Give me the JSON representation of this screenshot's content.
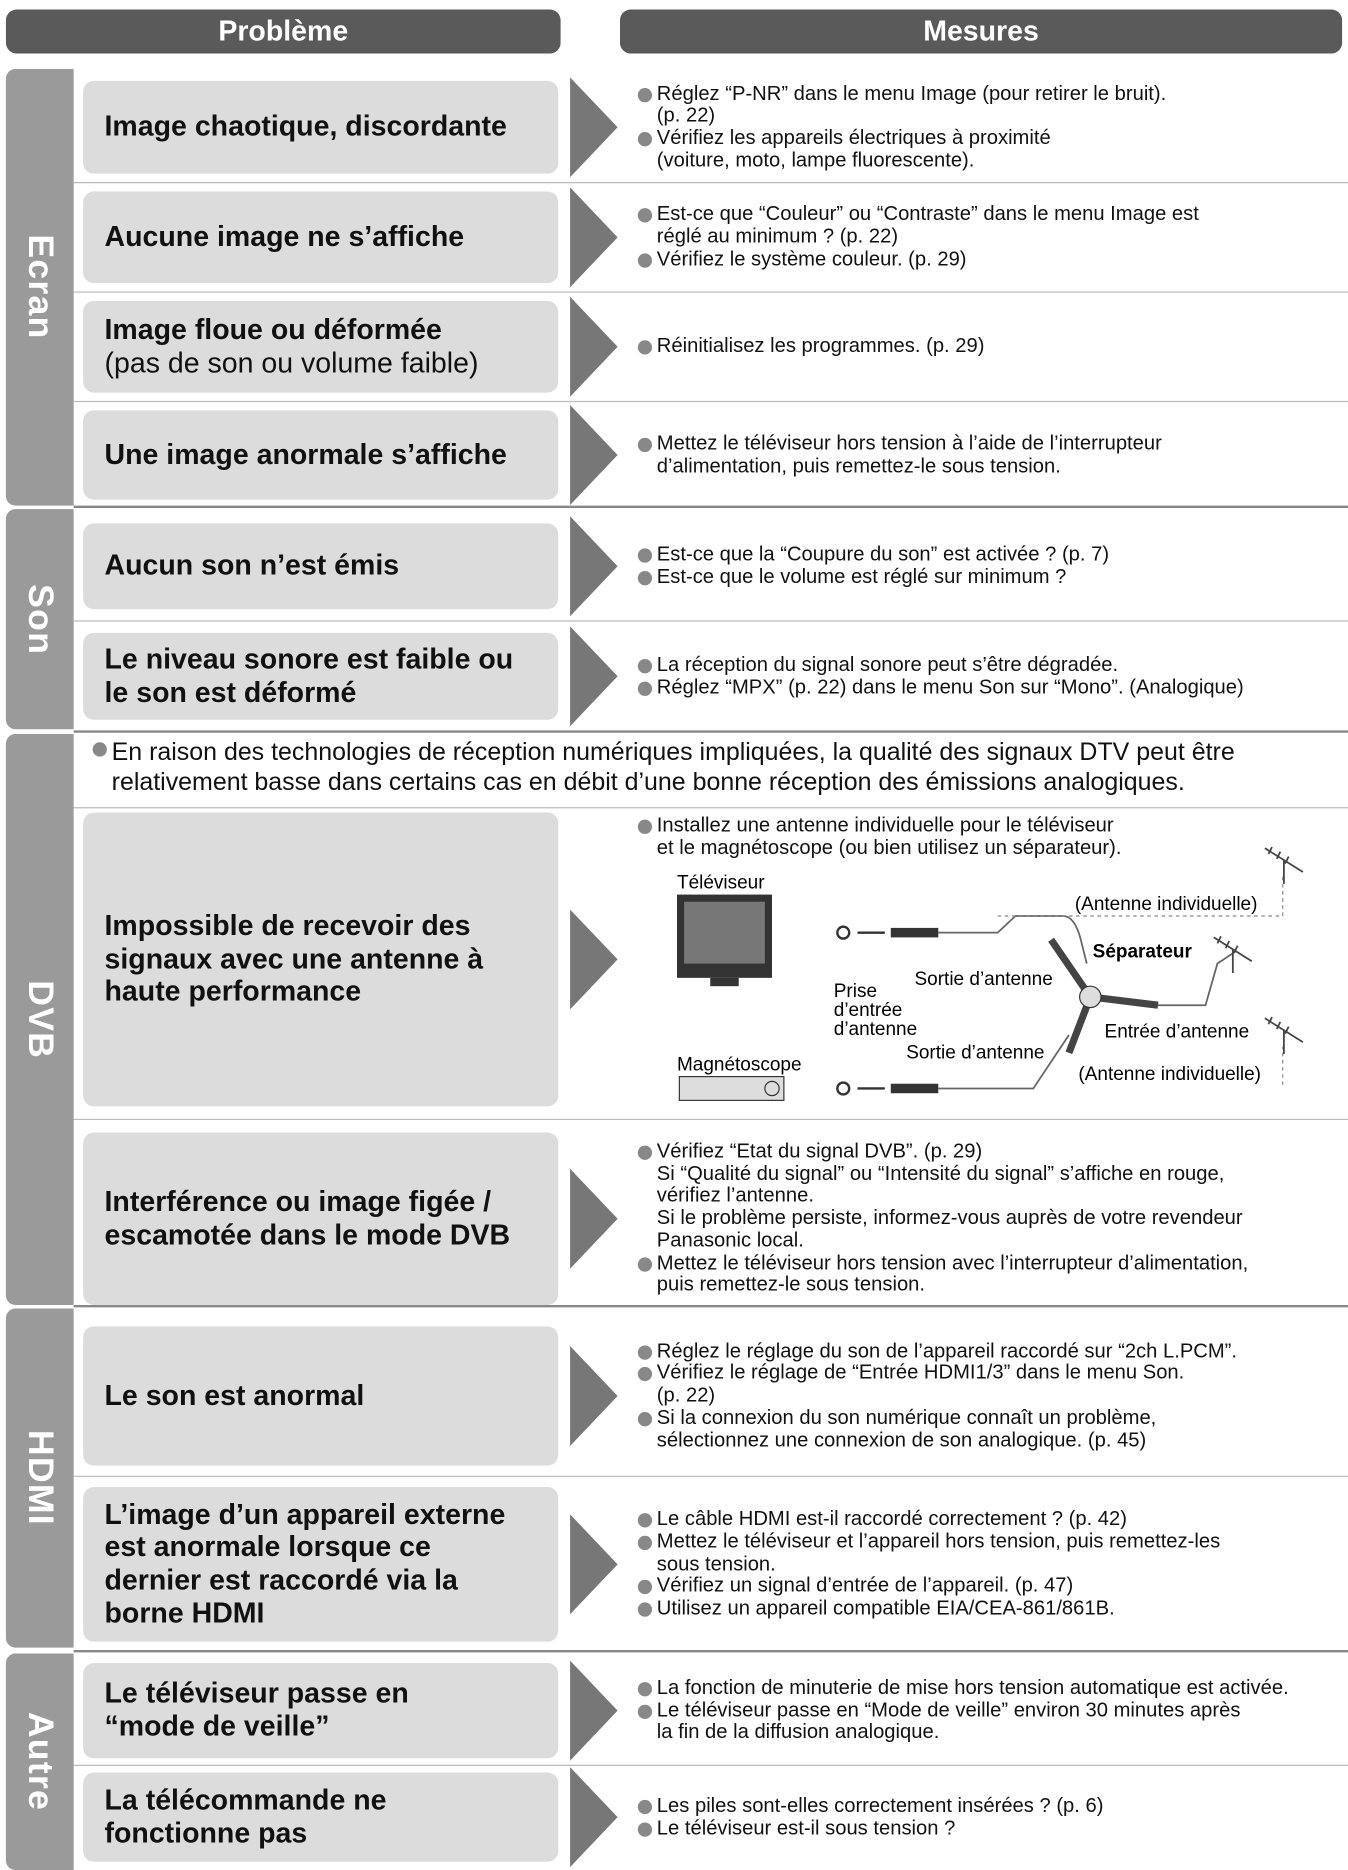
{
  "header": {
    "problem": "Problème",
    "measures": "Mesures"
  },
  "sections": [
    {
      "label": "Ecran",
      "rows": [
        {
          "problem": [
            "Image chaotique, discordante"
          ],
          "measures": [
            [
              "Réglez “P-NR” dans le menu Image (pour retirer le bruit).",
              "(p. 22)"
            ],
            [
              "Vérifiez les appareils électriques à proximité",
              "(voiture, moto, lampe fluorescente)."
            ]
          ]
        },
        {
          "problem": [
            "Aucune image ne s’affiche"
          ],
          "measures": [
            [
              "Est-ce que “Couleur” ou “Contraste” dans le menu Image est",
              "réglé au minimum ? (p. 22)"
            ],
            [
              "Vérifiez le système couleur. (p. 29)"
            ]
          ]
        },
        {
          "problem": [
            "Image floue ou déformée"
          ],
          "problem_note": "(pas de son ou volume faible)",
          "measures": [
            [
              "Réinitialisez les programmes. (p. 29)"
            ]
          ]
        },
        {
          "problem": [
            "Une image anormale s’affiche"
          ],
          "measures": [
            [
              "Mettez le téléviseur hors tension à l’aide de l’interrupteur",
              "d’alimentation, puis remettez-le sous tension."
            ]
          ]
        }
      ]
    },
    {
      "label": "Son",
      "rows": [
        {
          "problem": [
            "Aucun son n’est émis"
          ],
          "measures": [
            [
              "Est-ce que la “Coupure du son” est activée ? (p. 7)"
            ],
            [
              "Est-ce que le volume est réglé sur minimum ?"
            ]
          ]
        },
        {
          "problem": [
            "Le niveau sonore est faible ou",
            "le son est déformé"
          ],
          "measures": [
            [
              "La réception du signal sonore peut s’être dégradée."
            ],
            [
              "Réglez “MPX” (p. 22) dans le menu Son sur “Mono”. (Analogique)"
            ]
          ]
        }
      ]
    },
    {
      "label": "DVB",
      "note": [
        "En raison des technologies de réception numériques impliquées, la qualité des signaux DTV peut être",
        "relativement basse dans certains cas en débit d’une bonne réception des émissions analogiques."
      ],
      "rows": [
        {
          "problem": [
            "Impossible de recevoir des",
            "signaux avec une antenne à",
            "haute performance"
          ],
          "measures": [
            [
              "Installez une antenne individuelle pour le téléviseur",
              "et le magnétoscope (ou bien utilisez un séparateur)."
            ]
          ],
          "diagram": {
            "tv": "Téléviseur",
            "antenna_top": "(Antenne individuelle)",
            "splitter": "Séparateur",
            "out_top": "Sortie d’antenne",
            "input": [
              "Prise",
              "d’entrée",
              "d’antenne"
            ],
            "in_right": "Entrée d’antenne",
            "out_bottom": "Sortie d’antenne",
            "vcr": "Magnétoscope",
            "antenna_bottom": "(Antenne individuelle)"
          }
        },
        {
          "problem": [
            "Interférence ou image figée /",
            "escamotée dans le mode DVB"
          ],
          "measures": [
            [
              "Vérifiez “Etat du signal DVB”. (p. 29)",
              "Si “Qualité du signal” ou “Intensité du signal” s’affiche en rouge,",
              "vérifiez l’antenne.",
              "Si le problème persiste, informez-vous auprès de votre revendeur",
              "Panasonic local."
            ],
            [
              "Mettez le téléviseur hors tension avec l’interrupteur d’alimentation,",
              "puis remettez-le sous tension."
            ]
          ]
        }
      ]
    },
    {
      "label": "HDMI",
      "rows": [
        {
          "problem": [
            "Le son est anormal"
          ],
          "measures": [
            [
              "Réglez le réglage du son de l’appareil raccordé sur “2ch L.PCM”."
            ],
            [
              "Vérifiez le réglage de “Entrée HDMI1/3” dans le menu Son.",
              "(p. 22)"
            ],
            [
              "Si la connexion du son numérique connaît un problème,",
              "sélectionnez une connexion de son analogique. (p. 45)"
            ]
          ]
        },
        {
          "problem": [
            "L’image d’un appareil externe",
            "est anormale lorsque ce",
            "dernier est raccordé via la",
            "borne HDMI"
          ],
          "measures": [
            [
              "Le câble HDMI est-il raccordé correctement ? (p. 42)"
            ],
            [
              "Mettez le téléviseur et l’appareil hors tension, puis remettez-les",
              "sous tension."
            ],
            [
              "Vérifiez un signal d’entrée de l’appareil. (p. 47)"
            ],
            [
              "Utilisez un appareil compatible EIA/CEA-861/861B."
            ]
          ]
        }
      ]
    },
    {
      "label": "Autre",
      "rows": [
        {
          "problem": [
            "Le téléviseur passe en",
            "“mode de veille”"
          ],
          "measures": [
            [
              "La fonction de minuterie de mise hors tension automatique est activée."
            ],
            [
              "Le téléviseur passe en “Mode de veille” environ 30 minutes après",
              "la fin de la diffusion analogique."
            ]
          ]
        },
        {
          "problem": [
            "La télécommande ne",
            "fonctionne pas"
          ],
          "measures": [
            [
              "Les piles sont-elles correctement insérées ? (p. 6)"
            ],
            [
              "Le téléviseur est-il sous tension ?"
            ]
          ]
        }
      ]
    }
  ]
}
